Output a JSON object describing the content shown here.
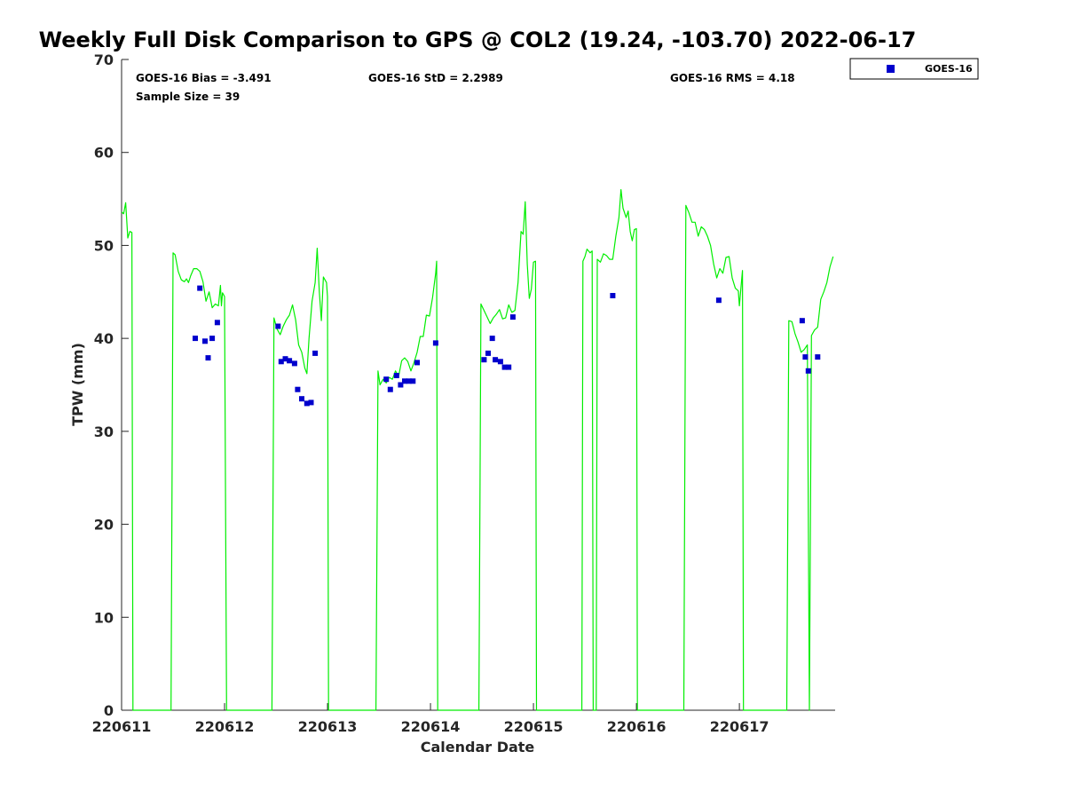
{
  "chart_data": {
    "type": "scatter",
    "title": "Weekly Full Disk Comparison to GPS @ COL2 (19.24, -103.70) 2022-06-17",
    "xlabel": "Calendar Date",
    "ylabel": "TPW (mm)",
    "xlim": [
      0,
      6.93
    ],
    "ylim": [
      0,
      70
    ],
    "x_ticks": [
      {
        "value": 0,
        "label": "220611"
      },
      {
        "value": 1,
        "label": "220612"
      },
      {
        "value": 2,
        "label": "220613"
      },
      {
        "value": 3,
        "label": "220614"
      },
      {
        "value": 4,
        "label": "220615"
      },
      {
        "value": 5,
        "label": "220616"
      },
      {
        "value": 6,
        "label": "220617"
      }
    ],
    "y_ticks": [
      {
        "value": 0,
        "label": "0"
      },
      {
        "value": 10,
        "label": "10"
      },
      {
        "value": 20,
        "label": "20"
      },
      {
        "value": 30,
        "label": "30"
      },
      {
        "value": 40,
        "label": "40"
      },
      {
        "value": 50,
        "label": "50"
      },
      {
        "value": 60,
        "label": "60"
      },
      {
        "value": 70,
        "label": "70"
      }
    ],
    "grid": false,
    "legend_position": "outside-top-right",
    "stats": {
      "bias": "GOES-16 Bias = -3.491",
      "stddev": "GOES-16 StD = 2.2989",
      "rms": "GOES-16 RMS = 4.18",
      "sample_size": "Sample Size = 39"
    },
    "series": [
      {
        "name": "GOES-16",
        "type": "scatter",
        "color": "#0000cc",
        "marker": "square",
        "points": [
          [
            0.715,
            40.0
          ],
          [
            0.76,
            45.4
          ],
          [
            0.81,
            39.7
          ],
          [
            0.84,
            37.9
          ],
          [
            0.88,
            40.0
          ],
          [
            0.93,
            41.7
          ],
          [
            1.52,
            41.3
          ],
          [
            1.55,
            37.5
          ],
          [
            1.59,
            37.8
          ],
          [
            1.63,
            37.6
          ],
          [
            1.68,
            37.3
          ],
          [
            1.71,
            34.5
          ],
          [
            1.75,
            33.5
          ],
          [
            1.8,
            33.0
          ],
          [
            1.84,
            33.1
          ],
          [
            1.88,
            38.4
          ],
          [
            2.57,
            35.6
          ],
          [
            2.61,
            34.5
          ],
          [
            2.67,
            36.0
          ],
          [
            2.71,
            35.0
          ],
          [
            2.75,
            35.4
          ],
          [
            2.79,
            35.4
          ],
          [
            2.83,
            35.4
          ],
          [
            2.87,
            37.4
          ],
          [
            3.05,
            39.5
          ],
          [
            3.52,
            37.7
          ],
          [
            3.56,
            38.4
          ],
          [
            3.6,
            40.0
          ],
          [
            3.63,
            37.7
          ],
          [
            3.68,
            37.5
          ],
          [
            3.72,
            36.9
          ],
          [
            3.76,
            36.9
          ],
          [
            3.8,
            42.3
          ],
          [
            4.77,
            44.6
          ],
          [
            5.8,
            44.1
          ],
          [
            6.61,
            41.9
          ],
          [
            6.64,
            38.0
          ],
          [
            6.67,
            36.5
          ],
          [
            6.76,
            38.0
          ]
        ]
      },
      {
        "type": "line",
        "color": "#00ee00",
        "points": [
          [
            0.0,
            53.6
          ],
          [
            0.02,
            53.4
          ],
          [
            0.04,
            54.6
          ],
          [
            0.06,
            50.8
          ],
          [
            0.08,
            51.5
          ],
          [
            0.1,
            51.4
          ],
          [
            0.11,
            0
          ],
          [
            0.48,
            0
          ],
          [
            0.5,
            49.2
          ],
          [
            0.52,
            49.0
          ],
          [
            0.55,
            47.2
          ],
          [
            0.58,
            46.3
          ],
          [
            0.61,
            46.1
          ],
          [
            0.63,
            46.4
          ],
          [
            0.65,
            46.0
          ],
          [
            0.67,
            46.7
          ],
          [
            0.7,
            47.5
          ],
          [
            0.73,
            47.5
          ],
          [
            0.76,
            47.2
          ],
          [
            0.79,
            46.1
          ],
          [
            0.82,
            44.0
          ],
          [
            0.85,
            45.0
          ],
          [
            0.88,
            43.3
          ],
          [
            0.91,
            43.7
          ],
          [
            0.94,
            43.5
          ],
          [
            0.96,
            45.7
          ],
          [
            0.97,
            43.5
          ],
          [
            0.98,
            44.9
          ],
          [
            1.0,
            44.5
          ],
          [
            1.02,
            0
          ],
          [
            1.46,
            0
          ],
          [
            1.48,
            42.2
          ],
          [
            1.51,
            41.0
          ],
          [
            1.54,
            40.4
          ],
          [
            1.57,
            41.3
          ],
          [
            1.6,
            42.0
          ],
          [
            1.63,
            42.5
          ],
          [
            1.66,
            43.6
          ],
          [
            1.69,
            42.0
          ],
          [
            1.72,
            39.3
          ],
          [
            1.75,
            38.5
          ],
          [
            1.78,
            36.8
          ],
          [
            1.8,
            36.2
          ],
          [
            1.82,
            40.0
          ],
          [
            1.85,
            44.0
          ],
          [
            1.88,
            46.0
          ],
          [
            1.9,
            49.7
          ],
          [
            1.92,
            45.0
          ],
          [
            1.94,
            41.9
          ],
          [
            1.96,
            46.6
          ],
          [
            1.99,
            46.0
          ],
          [
            2.0,
            44.5
          ],
          [
            2.01,
            0
          ],
          [
            2.47,
            0
          ],
          [
            2.49,
            36.5
          ],
          [
            2.51,
            35.0
          ],
          [
            2.54,
            35.6
          ],
          [
            2.57,
            35.2
          ],
          [
            2.6,
            35.8
          ],
          [
            2.63,
            35.6
          ],
          [
            2.66,
            36.5
          ],
          [
            2.69,
            35.9
          ],
          [
            2.72,
            37.6
          ],
          [
            2.75,
            37.9
          ],
          [
            2.78,
            37.5
          ],
          [
            2.81,
            36.5
          ],
          [
            2.84,
            37.4
          ],
          [
            2.87,
            38.5
          ],
          [
            2.9,
            40.2
          ],
          [
            2.93,
            40.2
          ],
          [
            2.96,
            42.5
          ],
          [
            2.99,
            42.4
          ],
          [
            3.02,
            44.4
          ],
          [
            3.05,
            47.0
          ],
          [
            3.06,
            48.3
          ],
          [
            3.07,
            0
          ],
          [
            3.47,
            0
          ],
          [
            3.49,
            43.7
          ],
          [
            3.52,
            43.0
          ],
          [
            3.55,
            42.3
          ],
          [
            3.58,
            41.6
          ],
          [
            3.61,
            42.2
          ],
          [
            3.64,
            42.6
          ],
          [
            3.67,
            43.1
          ],
          [
            3.7,
            42.1
          ],
          [
            3.73,
            42.2
          ],
          [
            3.76,
            43.6
          ],
          [
            3.79,
            42.8
          ],
          [
            3.82,
            43.0
          ],
          [
            3.85,
            46.0
          ],
          [
            3.88,
            51.5
          ],
          [
            3.9,
            51.2
          ],
          [
            3.92,
            54.7
          ],
          [
            3.94,
            48.0
          ],
          [
            3.96,
            44.3
          ],
          [
            3.98,
            45.3
          ],
          [
            4.0,
            48.2
          ],
          [
            4.02,
            48.3
          ],
          [
            4.03,
            0
          ],
          [
            4.47,
            0
          ],
          [
            4.48,
            48.3
          ],
          [
            4.5,
            48.8
          ],
          [
            4.52,
            49.6
          ],
          [
            4.55,
            49.2
          ],
          [
            4.57,
            49.4
          ],
          [
            4.58,
            0
          ],
          [
            4.61,
            0
          ],
          [
            4.62,
            48.5
          ],
          [
            4.65,
            48.2
          ],
          [
            4.68,
            49.1
          ],
          [
            4.71,
            48.9
          ],
          [
            4.74,
            48.5
          ],
          [
            4.77,
            48.5
          ],
          [
            4.8,
            51.0
          ],
          [
            4.83,
            53.0
          ],
          [
            4.85,
            56.0
          ],
          [
            4.87,
            54.0
          ],
          [
            4.9,
            53.0
          ],
          [
            4.92,
            53.7
          ],
          [
            4.94,
            51.5
          ],
          [
            4.96,
            50.5
          ],
          [
            4.98,
            51.7
          ],
          [
            5.0,
            51.8
          ],
          [
            5.01,
            0
          ],
          [
            5.46,
            0
          ],
          [
            5.48,
            54.3
          ],
          [
            5.51,
            53.5
          ],
          [
            5.54,
            52.5
          ],
          [
            5.57,
            52.5
          ],
          [
            5.6,
            51.0
          ],
          [
            5.63,
            52.0
          ],
          [
            5.66,
            51.7
          ],
          [
            5.69,
            51.0
          ],
          [
            5.72,
            50.0
          ],
          [
            5.75,
            48.0
          ],
          [
            5.78,
            46.5
          ],
          [
            5.81,
            47.5
          ],
          [
            5.84,
            47.0
          ],
          [
            5.87,
            48.7
          ],
          [
            5.9,
            48.8
          ],
          [
            5.93,
            46.5
          ],
          [
            5.96,
            45.4
          ],
          [
            5.99,
            45.1
          ],
          [
            6.0,
            43.5
          ],
          [
            6.02,
            46.0
          ],
          [
            6.03,
            47.3
          ],
          [
            6.04,
            0
          ],
          [
            6.46,
            0
          ],
          [
            6.48,
            41.9
          ],
          [
            6.51,
            41.8
          ],
          [
            6.54,
            40.5
          ],
          [
            6.57,
            39.6
          ],
          [
            6.6,
            38.5
          ],
          [
            6.63,
            38.8
          ],
          [
            6.66,
            39.3
          ],
          [
            6.68,
            0
          ],
          [
            6.7,
            40.3
          ],
          [
            6.73,
            40.9
          ],
          [
            6.76,
            41.2
          ],
          [
            6.79,
            44.2
          ],
          [
            6.82,
            45.0
          ],
          [
            6.85,
            46.0
          ],
          [
            6.88,
            47.7
          ],
          [
            6.91,
            48.8
          ]
        ]
      }
    ]
  }
}
